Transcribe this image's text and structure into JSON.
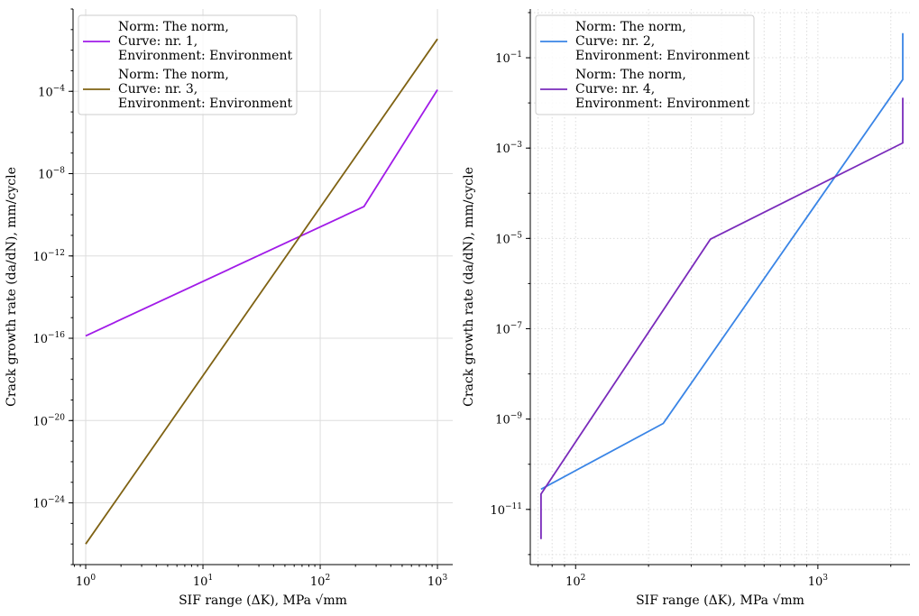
{
  "chart_data": [
    {
      "type": "line",
      "xscale": "log",
      "yscale": "log",
      "xlabel": "SIF range (ΔK), MPa √mm",
      "ylabel": "Crack growth rate (da/dN), mm/cycle",
      "xlim": [
        0.78,
        1350
      ],
      "ylim": [
        1e-27,
        1.0
      ],
      "grid": "major solid",
      "legend_position": "top-left",
      "xticks": [
        1,
        10,
        100,
        1000
      ],
      "xtick_labels": [
        [
          "10",
          "0"
        ],
        [
          "10",
          "1"
        ],
        [
          "10",
          "2"
        ],
        [
          "10",
          "3"
        ]
      ],
      "yticks": [
        0.0001,
        1e-08,
        1e-12,
        1e-16,
        1e-20,
        1e-24
      ],
      "ytick_labels": [
        [
          "10",
          "−4"
        ],
        [
          "10",
          "−8"
        ],
        [
          "10",
          "−12"
        ],
        [
          "10",
          "−16"
        ],
        [
          "10",
          "−20"
        ],
        [
          "10",
          "−24"
        ]
      ],
      "series": [
        {
          "name": [
            "Norm: The norm,",
            "Curve: nr. 1,",
            "Environment: Environment"
          ],
          "color": "#a11be8",
          "x": [
            1,
            236,
            1000
          ],
          "y": [
            1.3e-16,
            2.5e-10,
            0.00012
          ]
        },
        {
          "name": [
            "Norm: The norm,",
            "Curve: nr. 3,",
            "Environment: Environment"
          ],
          "color": "#7f6213",
          "x": [
            1,
            1000
          ],
          "y": [
            1e-26,
            0.035
          ]
        }
      ]
    },
    {
      "type": "line",
      "xscale": "log",
      "yscale": "log",
      "xlabel": "SIF range (ΔK), MPa √mm",
      "ylabel": "Crack growth rate (da/dN), mm/cycle",
      "xlim": [
        65,
        2400
      ],
      "ylim": [
        6e-13,
        1.2
      ],
      "grid": "major and minor dotted",
      "legend_position": "top-left",
      "xticks": [
        100,
        1000
      ],
      "xtick_labels": [
        [
          "10",
          "2"
        ],
        [
          "10",
          "3"
        ]
      ],
      "yticks": [
        0.1,
        0.001,
        1e-05,
        1e-07,
        1e-09,
        1e-11
      ],
      "ytick_labels": [
        [
          "10",
          "−1"
        ],
        [
          "10",
          "−3"
        ],
        [
          "10",
          "−5"
        ],
        [
          "10",
          "−7"
        ],
        [
          "10",
          "−9"
        ],
        [
          "10",
          "−11"
        ]
      ],
      "series": [
        {
          "name": [
            "Norm: The norm,",
            "Curve: nr. 2,",
            "Environment: Environment"
          ],
          "color": "#3a85e6",
          "x": [
            72,
            230,
            2240,
            2240
          ],
          "y": [
            2.8e-11,
            8e-10,
            0.033,
            0.35
          ]
        },
        {
          "name": [
            "Norm: The norm,",
            "Curve: nr. 4,",
            "Environment: Environment"
          ],
          "color": "#7a2bbb",
          "x": [
            72,
            72,
            360,
            2240,
            2240
          ],
          "y": [
            2.2e-12,
            2.2e-11,
            9.6e-06,
            0.0013,
            0.013
          ]
        }
      ]
    }
  ]
}
